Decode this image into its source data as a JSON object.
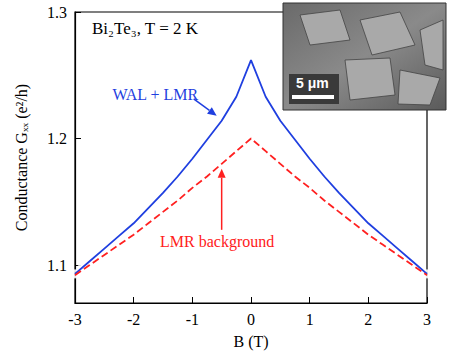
{
  "chart_data": {
    "type": "scatter",
    "title": "Bi₂Te₃, T = 2 K",
    "x_label": "B (T)",
    "y_label": "Conductance Gₓₓ (e²/h)",
    "xlim": [
      -3,
      3
    ],
    "xticks": [
      -3,
      -2,
      -1,
      0,
      1,
      2,
      3
    ],
    "ylim": [
      1.07,
      1.3
    ],
    "yticks": [
      1.1,
      1.2,
      1.3
    ],
    "grid": false,
    "series": [
      {
        "type": "scatter",
        "marker": "circle_open",
        "color": "#1c2a8a",
        "x": [
          -3,
          -2.9,
          -2.8,
          -2.7,
          -2.6,
          -2.5,
          -2.4,
          -2.3,
          -2.2,
          -2.1,
          -2,
          -1.9,
          -1.8,
          -1.7,
          -1.6,
          -1.5,
          -1.4,
          -1.3,
          -1.2,
          -1.1,
          -1,
          -0.9,
          -0.8,
          -0.7,
          -0.6,
          -0.5,
          -0.4,
          -0.3,
          -0.2,
          -0.1,
          0,
          0.1,
          0.2,
          0.3,
          0.4,
          0.5,
          0.6,
          0.7,
          0.8,
          0.9,
          1,
          1.1,
          1.2,
          1.3,
          1.4,
          1.5,
          1.6,
          1.7,
          1.8,
          1.9,
          2,
          2.1,
          2.2,
          2.3,
          2.4,
          2.5,
          2.6,
          2.7,
          2.8,
          2.9,
          3
        ],
        "values": [
          1.093,
          1.097,
          1.101,
          1.105,
          1.109,
          1.113,
          1.117,
          1.121,
          1.125,
          1.129,
          1.133,
          1.138,
          1.142,
          1.147,
          1.152,
          1.157,
          1.162,
          1.167,
          1.173,
          1.179,
          1.184,
          1.19,
          1.196,
          1.202,
          1.208,
          1.214,
          1.221,
          1.229,
          1.237,
          1.247,
          1.26,
          1.247,
          1.237,
          1.229,
          1.221,
          1.214,
          1.208,
          1.202,
          1.196,
          1.19,
          1.184,
          1.179,
          1.173,
          1.167,
          1.162,
          1.157,
          1.152,
          1.147,
          1.142,
          1.138,
          1.133,
          1.129,
          1.125,
          1.121,
          1.117,
          1.113,
          1.109,
          1.105,
          1.101,
          1.097,
          1.093
        ]
      },
      {
        "name": "WAL + LMR",
        "type": "line",
        "line_style": "solid",
        "color": "#1f3fe0",
        "x": [
          -3,
          -2.75,
          -2.5,
          -2.25,
          -2,
          -1.75,
          -1.5,
          -1.25,
          -1,
          -0.75,
          -0.5,
          -0.25,
          0,
          0.25,
          0.5,
          0.75,
          1,
          1.25,
          1.5,
          1.75,
          2,
          2.25,
          2.5,
          2.75,
          3
        ],
        "values": [
          1.093,
          1.103,
          1.113,
          1.123,
          1.133,
          1.145,
          1.157,
          1.17,
          1.184,
          1.199,
          1.214,
          1.233,
          1.262,
          1.233,
          1.214,
          1.199,
          1.184,
          1.17,
          1.157,
          1.145,
          1.133,
          1.123,
          1.113,
          1.103,
          1.093
        ]
      },
      {
        "name": "LMR background",
        "type": "line",
        "line_style": "dashed",
        "color": "#ff2020",
        "x": [
          -3,
          -2.75,
          -2.5,
          -2.25,
          -2,
          -1.75,
          -1.5,
          -1.25,
          -1,
          -0.75,
          -0.5,
          -0.25,
          0,
          0.25,
          0.5,
          0.75,
          1,
          1.25,
          1.5,
          1.75,
          2,
          2.25,
          2.5,
          2.75,
          3
        ],
        "values": [
          1.092,
          1.1,
          1.108,
          1.116,
          1.124,
          1.133,
          1.142,
          1.151,
          1.161,
          1.17,
          1.18,
          1.19,
          1.2,
          1.19,
          1.18,
          1.17,
          1.161,
          1.151,
          1.142,
          1.133,
          1.124,
          1.116,
          1.108,
          1.1,
          1.092
        ]
      }
    ],
    "inset": {
      "scale_label": "5 μm"
    }
  }
}
